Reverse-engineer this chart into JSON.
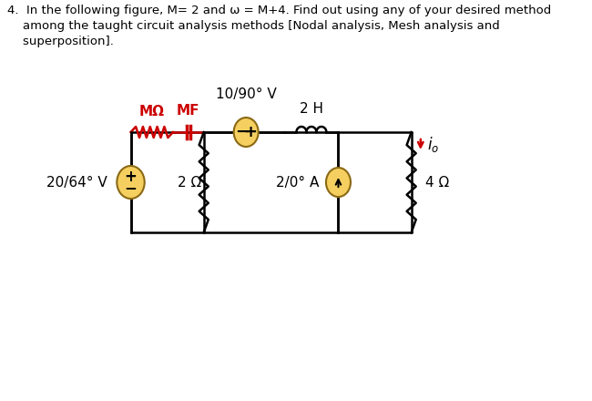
{
  "title_text": "4.  In the following figure, M= 2 and ω = M+4. Find out using any of your desired method\n    among the taught circuit analysis methods [Nodal analysis, Mesh analysis and\n    superposition].",
  "bg_color": "#ffffff",
  "circuit_color": "#000000",
  "red_color": "#cc0000",
  "arrow_red": "#cc0000",
  "source_fill": "#f5d060",
  "source_stroke": "#c8a000",
  "vs_fill": "#f5d060",
  "cs_fill": "#f5d060",
  "label_MO": "MΩ",
  "label_MF": "MF",
  "label_10V": "10/90° V",
  "label_2H": "2 H",
  "label_20V": "20/64° V",
  "label_2ohm": "2 Ω",
  "label_2A": "2/0° A",
  "label_4ohm": "4 Ω",
  "label_io": "iₒ"
}
